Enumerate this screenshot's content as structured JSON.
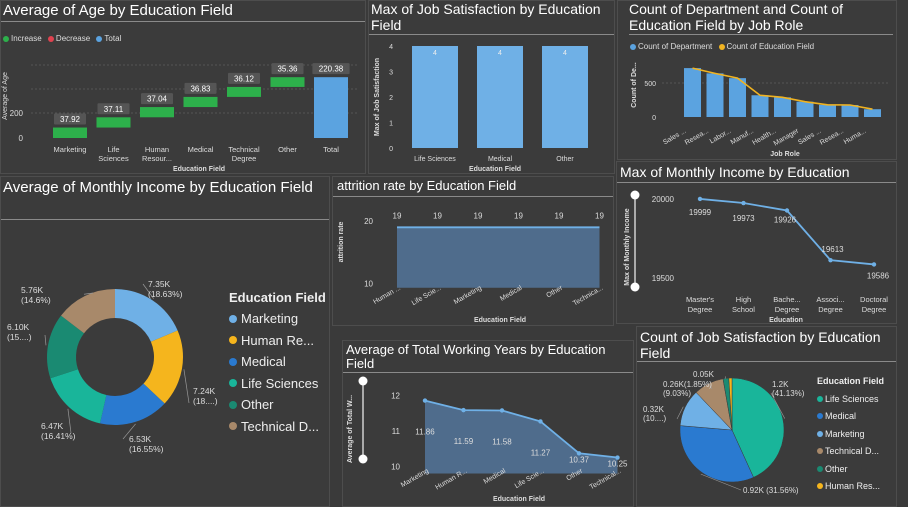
{
  "panels": {
    "age": {
      "title": "Average of Age by Education Field",
      "legend": [
        {
          "label": "Increase",
          "color": "#2db04b"
        },
        {
          "label": "Decrease",
          "color": "#e0424f"
        },
        {
          "label": "Total",
          "color": "#5ba3e0"
        }
      ],
      "ylabel": "Average of Age",
      "xlabel": "Education Field",
      "yticks": [
        "200",
        "0"
      ]
    },
    "jobsat": {
      "title": "Max of Job Satisfaction by Education Field",
      "ylabel": "Max of Job Satisfaction",
      "xlabel": "Education Field",
      "yticks": [
        "4",
        "3",
        "2",
        "1",
        "0"
      ]
    },
    "dept": {
      "title": "Count of Department and Count of Education Field by Job Role",
      "legend": [
        {
          "label": "Count of Department",
          "color": "#5ba3e0"
        },
        {
          "label": "Count of Education Field",
          "color": "#f0b321"
        }
      ],
      "ylabel": "Count of De...",
      "xlabel": "Job Role",
      "yticks": [
        "500",
        "0"
      ]
    },
    "income": {
      "title": "Average of Monthly Income by Education Field",
      "legend_title": "Education Field"
    },
    "attrition": {
      "title": "attrition rate by Education Field",
      "ylabel": "attrition rate",
      "xlabel": "Education Field",
      "yticks": [
        "20",
        "10"
      ]
    },
    "maxincome": {
      "title": "Max of Monthly Income by Education",
      "ylabel": "Max of Monthly Income",
      "xlabel": "Education",
      "yticks": [
        "20000",
        "19500"
      ]
    },
    "working": {
      "title": "Average of Total Working Years by Education Field",
      "ylabel": "Average of Total W...",
      "xlabel": "Education Field",
      "yticks": [
        "12",
        "11",
        "10"
      ]
    },
    "jobsatcount": {
      "title": "Count of Job Satisfaction by Education Field",
      "legend_title": "Education Field"
    }
  },
  "chart_data": [
    {
      "id": "age",
      "type": "bar",
      "subtype": "waterfall",
      "title": "Average of Age by Education Field",
      "xlabel": "Education Field",
      "ylabel": "Average of Age",
      "categories": [
        "Marketing",
        "Life Sciences",
        "Human Resour...",
        "Medical",
        "Technical Degree",
        "Other",
        "Total"
      ],
      "values": [
        37.92,
        37.11,
        37.04,
        36.83,
        36.12,
        35.36,
        220.38
      ],
      "ylim": [
        0,
        230
      ]
    },
    {
      "id": "jobsat",
      "type": "bar",
      "title": "Max of Job Satisfaction by Education Field",
      "xlabel": "Education Field",
      "ylabel": "Max of Job Satisfaction",
      "categories": [
        "Life Sciences",
        "Medical",
        "Other"
      ],
      "values": [
        4,
        4,
        4
      ],
      "ylim": [
        0,
        4
      ]
    },
    {
      "id": "dept",
      "type": "bar",
      "title": "Count of Department and Count of Education Field by Job Role",
      "xlabel": "Job Role",
      "ylabel": "Count of De...",
      "categories": [
        "Sales ...",
        "Resea...",
        "Labor...",
        "Manuf...",
        "Health...",
        "Manager",
        "Sales ...",
        "Resea...",
        "Huma..."
      ],
      "series": [
        {
          "name": "Count of Department",
          "values": [
            652,
            582,
            518,
            290,
            262,
            204,
            163,
            160,
            104
          ]
        },
        {
          "name": "Count of Education Field",
          "values": [
            652,
            582,
            518,
            290,
            262,
            204,
            163,
            160,
            104
          ]
        }
      ],
      "ylim": [
        0,
        700
      ]
    },
    {
      "id": "income",
      "type": "pie",
      "subtype": "donut",
      "title": "Average of Monthly Income by Education Field",
      "series": [
        {
          "name": "Marketing",
          "value": 7.35,
          "label": "7.35K (18.63%)",
          "color": "#6fb0e6"
        },
        {
          "name": "Human Re...",
          "value": 7.24,
          "label": "7.24K (18....)",
          "color": "#f5b51d"
        },
        {
          "name": "Medical",
          "value": 6.53,
          "label": "6.53K (16.55%)",
          "color": "#2a7ad0"
        },
        {
          "name": "Life Sciences",
          "value": 6.47,
          "label": "6.47K (16.41%)",
          "color": "#19b59a"
        },
        {
          "name": "Other",
          "value": 6.1,
          "label": "6.10K (15....)",
          "color": "#1a8a72"
        },
        {
          "name": "Technical D...",
          "value": 5.76,
          "label": "5.76K (14.6%)",
          "color": "#a8896a"
        }
      ]
    },
    {
      "id": "attrition",
      "type": "area",
      "title": "attrition rate by Education Field",
      "xlabel": "Education Field",
      "ylabel": "attrition rate",
      "categories": [
        "Human ...",
        "Life Scie...",
        "Marketing",
        "Medical",
        "Other",
        "Technica..."
      ],
      "values": [
        19,
        19,
        19,
        19,
        19,
        19
      ],
      "ylim": [
        7,
        25
      ]
    },
    {
      "id": "maxincome",
      "type": "line",
      "title": "Max of Monthly Income by Education",
      "xlabel": "Education",
      "ylabel": "Max of Monthly Income",
      "categories": [
        "Master's Degree",
        "High School",
        "Bache... Degree",
        "Associ... Degree",
        "Doctoral Degree"
      ],
      "values": [
        19999,
        19973,
        19926,
        19613,
        19586
      ],
      "ylim": [
        19450,
        20030
      ]
    },
    {
      "id": "working",
      "type": "area",
      "title": "Average of Total Working Years by Education Field",
      "xlabel": "Education Field",
      "ylabel": "Average of Total W...",
      "categories": [
        "Marketing",
        "Human R...",
        "Medical",
        "Life Scie...",
        "Other",
        "Technical..."
      ],
      "values": [
        11.86,
        11.59,
        11.58,
        11.27,
        10.37,
        10.25
      ],
      "ylim": [
        9.7,
        12.3
      ]
    },
    {
      "id": "jobsatcount",
      "type": "pie",
      "title": "Count of Job Satisfaction by Education Field",
      "series": [
        {
          "name": "Life Sciences",
          "value": 1.2,
          "label": "1.2K\n(41.13%)",
          "color": "#19b59a"
        },
        {
          "name": "Medical",
          "value": 0.92,
          "label": "0.92K (31.56%)",
          "color": "#2a7ad0"
        },
        {
          "name": "Marketing",
          "value": 0.32,
          "label": "0.32K\n(10....)",
          "color": "#6fb0e6"
        },
        {
          "name": "Technical D...",
          "value": 0.26,
          "label": "0.26K(1.85%)\n(9.03%)",
          "color": "#a8896a"
        },
        {
          "name": "Other",
          "value": 0.05,
          "label": "0.05K",
          "color": "#1a8a72"
        },
        {
          "name": "Human Res...",
          "value": 0.027,
          "label": "",
          "color": "#f5b51d"
        }
      ]
    }
  ]
}
